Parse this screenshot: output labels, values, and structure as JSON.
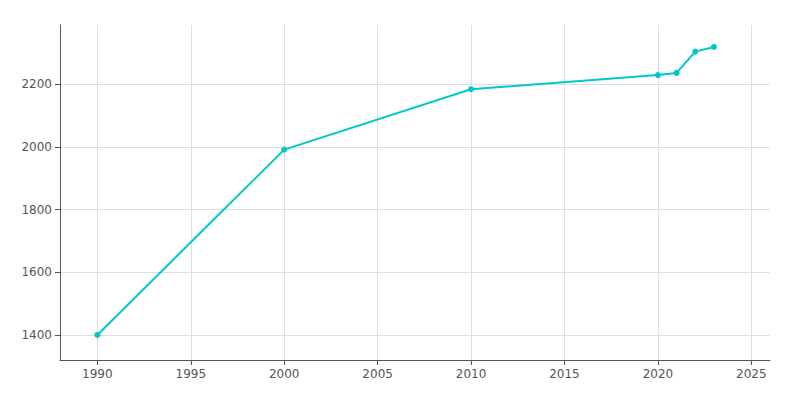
{
  "chart_data": {
    "type": "line",
    "x": [
      1990,
      2000,
      2010,
      2020,
      2021,
      2022,
      2023
    ],
    "values": [
      1400,
      1992,
      2185,
      2230,
      2237,
      2305,
      2320
    ],
    "color": "#00c8c8",
    "marker": "circle",
    "xlim": [
      1988,
      2026
    ],
    "ylim": [
      1320,
      2390
    ],
    "xticks": [
      1990,
      1995,
      2000,
      2005,
      2010,
      2015,
      2020,
      2025
    ],
    "yticks": [
      1400,
      1600,
      1800,
      2000,
      2200
    ],
    "grid": true
  }
}
